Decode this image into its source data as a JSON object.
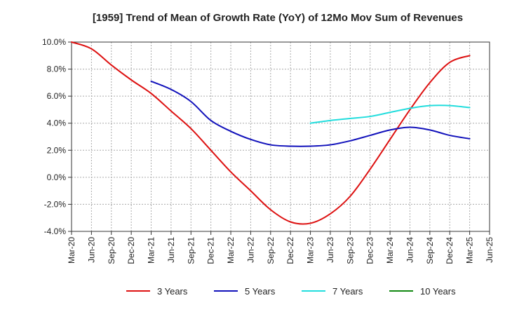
{
  "chart_data": {
    "type": "line",
    "title": "[1959]  Trend of Mean of Growth Rate (YoY) of 12Mo Mov Sum of Revenues",
    "xlabel": "",
    "ylabel": "",
    "ylim": [
      -4.0,
      10.0
    ],
    "y_ticks": [
      {
        "value": 10,
        "label": "10.0%"
      },
      {
        "value": 8,
        "label": "8.0%"
      },
      {
        "value": 6,
        "label": "6.0%"
      },
      {
        "value": 4,
        "label": "4.0%"
      },
      {
        "value": 2,
        "label": "2.0%"
      },
      {
        "value": 0,
        "label": "0.0%"
      },
      {
        "value": -2,
        "label": "-2.0%"
      },
      {
        "value": -4,
        "label": "-4.0%"
      }
    ],
    "x_ticks": [
      "Mar-20",
      "Jun-20",
      "Sep-20",
      "Dec-20",
      "Mar-21",
      "Jun-21",
      "Sep-21",
      "Dec-21",
      "Mar-22",
      "Jun-22",
      "Sep-22",
      "Dec-22",
      "Mar-23",
      "Jun-23",
      "Sep-23",
      "Dec-23",
      "Mar-24",
      "Jun-24",
      "Sep-24",
      "Dec-24",
      "Mar-25",
      "Jun-25"
    ],
    "grid": true,
    "legend_position": "bottom",
    "series": [
      {
        "name": "3 Years",
        "color": "#dd1111",
        "points": [
          {
            "x": 0,
            "y": 10.0
          },
          {
            "x": 1,
            "y": 9.5
          },
          {
            "x": 2,
            "y": 8.3
          },
          {
            "x": 3,
            "y": 7.2
          },
          {
            "x": 4,
            "y": 6.2
          },
          {
            "x": 5,
            "y": 4.9
          },
          {
            "x": 6,
            "y": 3.6
          },
          {
            "x": 7,
            "y": 2.0
          },
          {
            "x": 8,
            "y": 0.4
          },
          {
            "x": 9,
            "y": -1.0
          },
          {
            "x": 10,
            "y": -2.4
          },
          {
            "x": 11,
            "y": -3.3
          },
          {
            "x": 12,
            "y": -3.4
          },
          {
            "x": 13,
            "y": -2.7
          },
          {
            "x": 14,
            "y": -1.4
          },
          {
            "x": 15,
            "y": 0.6
          },
          {
            "x": 16,
            "y": 2.8
          },
          {
            "x": 17,
            "y": 5.0
          },
          {
            "x": 18,
            "y": 7.0
          },
          {
            "x": 19,
            "y": 8.5
          },
          {
            "x": 20,
            "y": 9.0
          }
        ]
      },
      {
        "name": "5 Years",
        "color": "#1111bb",
        "points": [
          {
            "x": 4,
            "y": 7.1
          },
          {
            "x": 5,
            "y": 6.5
          },
          {
            "x": 6,
            "y": 5.6
          },
          {
            "x": 7,
            "y": 4.2
          },
          {
            "x": 8,
            "y": 3.4
          },
          {
            "x": 9,
            "y": 2.8
          },
          {
            "x": 10,
            "y": 2.4
          },
          {
            "x": 11,
            "y": 2.3
          },
          {
            "x": 12,
            "y": 2.3
          },
          {
            "x": 13,
            "y": 2.4
          },
          {
            "x": 14,
            "y": 2.7
          },
          {
            "x": 15,
            "y": 3.1
          },
          {
            "x": 16,
            "y": 3.5
          },
          {
            "x": 17,
            "y": 3.7
          },
          {
            "x": 18,
            "y": 3.5
          },
          {
            "x": 19,
            "y": 3.1
          },
          {
            "x": 20,
            "y": 2.85
          }
        ]
      },
      {
        "name": "7 Years",
        "color": "#22dddd",
        "points": [
          {
            "x": 12,
            "y": 4.0
          },
          {
            "x": 13,
            "y": 4.2
          },
          {
            "x": 14,
            "y": 4.35
          },
          {
            "x": 15,
            "y": 4.5
          },
          {
            "x": 16,
            "y": 4.8
          },
          {
            "x": 17,
            "y": 5.1
          },
          {
            "x": 18,
            "y": 5.3
          },
          {
            "x": 19,
            "y": 5.3
          },
          {
            "x": 20,
            "y": 5.15
          }
        ]
      },
      {
        "name": "10 Years",
        "color": "#118811",
        "points": []
      }
    ]
  }
}
